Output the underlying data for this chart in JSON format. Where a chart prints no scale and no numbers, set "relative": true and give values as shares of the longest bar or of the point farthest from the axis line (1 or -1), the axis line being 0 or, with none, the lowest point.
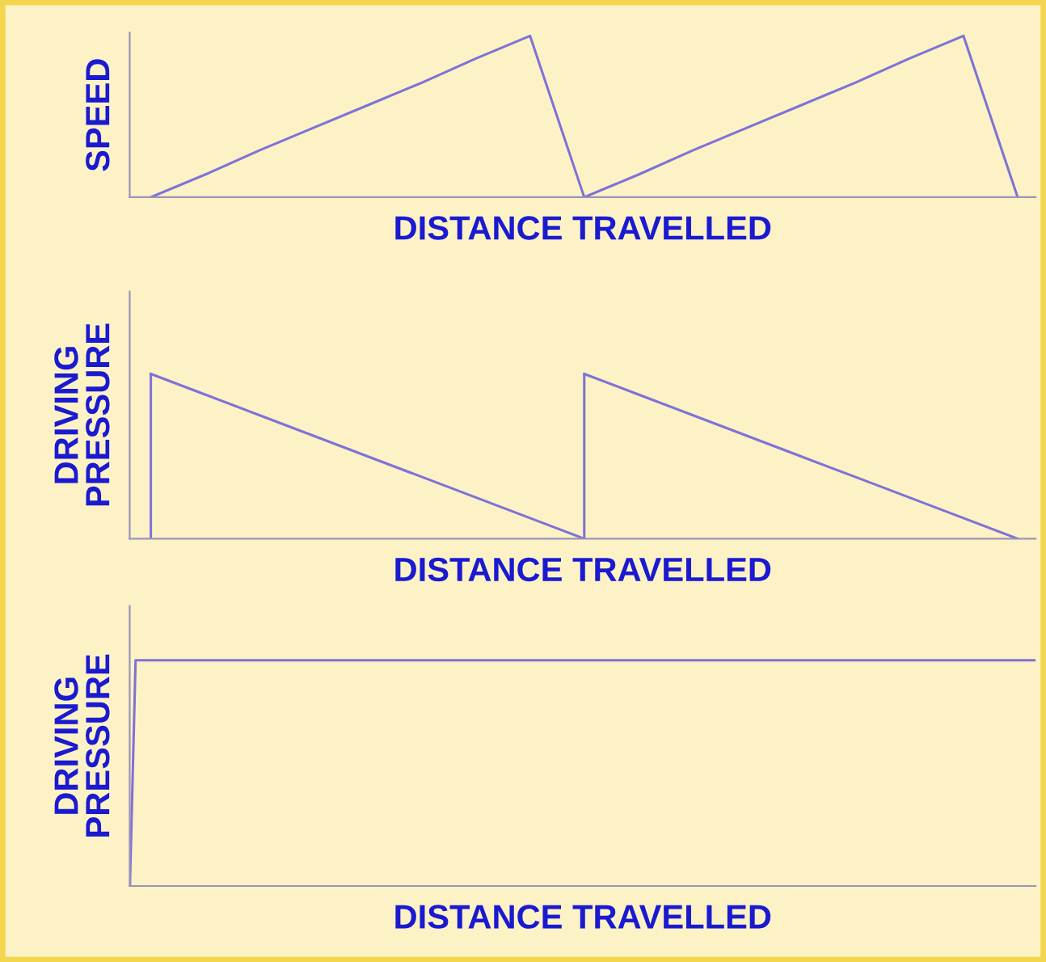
{
  "chart_data": [
    {
      "type": "line",
      "relative": true,
      "ylabel": "SPEED",
      "xlabel": "DISTANCE TRAVELLED",
      "tick_labels": false,
      "categories": [
        null,
        null,
        null,
        null,
        null,
        null,
        null,
        null,
        null,
        null,
        null,
        null,
        null,
        null,
        null,
        null,
        null
      ],
      "series": [
        {
          "color": "#7f72d6",
          "values": [
            0,
            0.14,
            0.29,
            0.43,
            0.57,
            0.71,
            0.86,
            1,
            0,
            0.14,
            0.29,
            0.43,
            0.57,
            0.71,
            0.86,
            1,
            0
          ]
        }
      ]
    },
    {
      "type": "line",
      "relative": true,
      "ylabel": "DRIVING\nPRESSURE",
      "xlabel": "DISTANCE TRAVELLED",
      "tick_labels": false,
      "categories": [
        null,
        null,
        null,
        null,
        null,
        null,
        null,
        null,
        null,
        null,
        null,
        null,
        null,
        null,
        null,
        null,
        null
      ],
      "series": [
        {
          "color": "#7f72d6",
          "values": [
            1,
            0.875,
            0.75,
            0.625,
            0.5,
            0.375,
            0.25,
            0.125,
            0,
            null,
            null,
            null,
            null,
            null,
            null,
            null,
            null
          ]
        },
        {
          "color": "#7f72d6",
          "values": [
            null,
            null,
            null,
            null,
            null,
            null,
            null,
            null,
            1,
            0.875,
            0.75,
            0.625,
            0.5,
            0.375,
            0.25,
            0.125,
            0
          ]
        }
      ]
    },
    {
      "type": "line",
      "relative": true,
      "ylabel": "DRIVING\nPRESSURE",
      "xlabel": "DISTANCE TRAVELLED",
      "tick_labels": false,
      "categories": [
        null,
        null,
        null,
        null,
        null,
        null,
        null,
        null,
        null,
        null,
        null,
        null,
        null,
        null,
        null,
        null,
        null,
        null,
        null,
        null,
        null,
        null,
        null,
        null,
        null,
        null,
        null,
        null,
        null,
        null,
        null,
        null,
        null,
        null,
        null,
        null,
        null,
        null,
        null,
        null,
        null,
        null,
        null,
        null,
        null,
        null,
        null,
        null,
        null,
        null,
        null,
        null,
        null,
        null,
        null,
        null,
        null,
        null,
        null,
        null,
        null,
        null,
        null,
        null,
        null,
        null,
        null,
        null,
        null,
        null,
        null,
        null,
        null,
        null,
        null,
        null,
        null,
        null,
        null,
        null,
        null,
        null,
        null,
        null,
        null,
        null,
        null,
        null,
        null,
        null,
        null,
        null,
        null,
        null,
        null,
        null,
        null,
        null,
        null,
        null,
        null,
        null,
        null,
        null,
        null,
        null,
        null,
        null,
        null,
        null,
        null,
        null,
        null,
        null,
        null,
        null,
        null,
        null,
        null,
        null,
        null,
        null,
        null,
        null,
        null,
        null,
        null,
        null,
        null,
        null,
        null,
        null,
        null,
        null,
        null,
        null,
        null,
        null,
        null,
        null,
        null,
        null,
        null,
        null,
        null,
        null,
        null,
        null,
        null,
        null,
        null,
        null,
        null,
        null,
        null,
        null,
        null,
        null,
        null,
        null,
        null
      ],
      "series": [
        {
          "color": "#7f72d6",
          "values": [
            0,
            1,
            1,
            1,
            1,
            1,
            1,
            1,
            1,
            1,
            1,
            1,
            1,
            1,
            1,
            1,
            1,
            1,
            1,
            1,
            1,
            1,
            1,
            1,
            1,
            1,
            1,
            1,
            1,
            1,
            1,
            1,
            1,
            1,
            1,
            1,
            1,
            1,
            1,
            1,
            1,
            1,
            1,
            1,
            1,
            1,
            1,
            1,
            1,
            1,
            1,
            1,
            1,
            1,
            1,
            1,
            1,
            1,
            1,
            1,
            1,
            1,
            1,
            1,
            1,
            1,
            1,
            1,
            1,
            1,
            1,
            1,
            1,
            1,
            1,
            1,
            1,
            1,
            1,
            1,
            1,
            1,
            1,
            1,
            1,
            1,
            1,
            1,
            1,
            1,
            1,
            1,
            1,
            1,
            1,
            1,
            1,
            1,
            1,
            1,
            1,
            1,
            1,
            1,
            1,
            1,
            1,
            1,
            1,
            1,
            1,
            1,
            1,
            1,
            1,
            1,
            1,
            1,
            1,
            1,
            1,
            1,
            1,
            1,
            1,
            1,
            1,
            1,
            1,
            1,
            1,
            1,
            1,
            1,
            1,
            1,
            1,
            1,
            1,
            1,
            1,
            1,
            1,
            1,
            1,
            1,
            1,
            1,
            1,
            1,
            1,
            1,
            1,
            1,
            1,
            1,
            1,
            1,
            1,
            1,
            1
          ]
        }
      ]
    }
  ]
}
